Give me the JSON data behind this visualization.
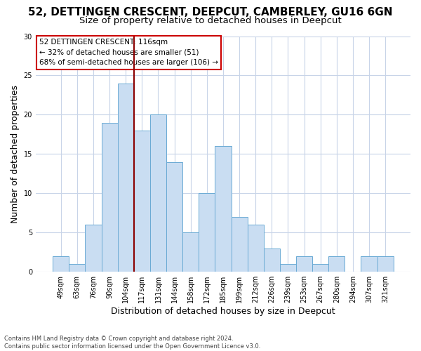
{
  "title1": "52, DETTINGEN CRESCENT, DEEPCUT, CAMBERLEY, GU16 6GN",
  "title2": "Size of property relative to detached houses in Deepcut",
  "xlabel": "Distribution of detached houses by size in Deepcut",
  "ylabel": "Number of detached properties",
  "footer1": "Contains HM Land Registry data © Crown copyright and database right 2024.",
  "footer2": "Contains public sector information licensed under the Open Government Licence v3.0.",
  "annotation_line1": "52 DETTINGEN CRESCENT: 116sqm",
  "annotation_line2": "← 32% of detached houses are smaller (51)",
  "annotation_line3": "68% of semi-detached houses are larger (106) →",
  "bar_labels": [
    "49sqm",
    "63sqm",
    "76sqm",
    "90sqm",
    "104sqm",
    "117sqm",
    "131sqm",
    "144sqm",
    "158sqm",
    "172sqm",
    "185sqm",
    "199sqm",
    "212sqm",
    "226sqm",
    "239sqm",
    "253sqm",
    "267sqm",
    "280sqm",
    "294sqm",
    "307sqm",
    "321sqm"
  ],
  "bar_values": [
    2,
    1,
    6,
    19,
    24,
    18,
    20,
    14,
    5,
    10,
    16,
    7,
    6,
    3,
    1,
    2,
    1,
    2,
    0,
    2,
    2
  ],
  "bar_color": "#c9ddf2",
  "bar_edge_color": "#6aaad4",
  "vline_color": "#8b0000",
  "ylim": [
    0,
    30
  ],
  "yticks": [
    0,
    5,
    10,
    15,
    20,
    25,
    30
  ],
  "grid_color": "#c8d4e8",
  "annotation_box_edge": "#cc0000",
  "title1_fontsize": 11,
  "title2_fontsize": 9.5,
  "xlabel_fontsize": 9,
  "ylabel_fontsize": 9,
  "tick_fontsize": 7,
  "footer_fontsize": 6,
  "annotation_fontsize": 7.5
}
